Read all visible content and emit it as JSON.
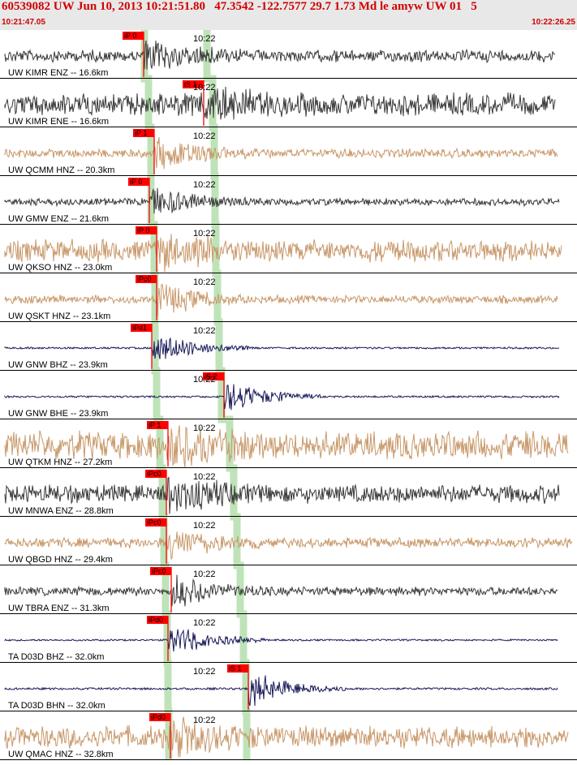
{
  "header": {
    "title": "60539082 UW Jun 10, 2013 10:21:51.80   47.3542 -122.7577 29.7 1.73 Md le amyw UW 01   5",
    "start_time": "10:21:47.05",
    "end_time": "10:22:26.25"
  },
  "time_tick_label": "10:22",
  "colors": {
    "header_bg": "#e8e8e8",
    "title_red": "#d00000",
    "pick_red": "#ff0000",
    "trace_gray": "#3a3a3a",
    "trace_tan": "#c8986a",
    "trace_navy": "#1a1a5a",
    "band_green": "#b8e0b0"
  },
  "traces": [
    {
      "label": "UW KIMR ENZ -- 16.6km",
      "pick": "iP 0",
      "color": "gray",
      "amp": 0.3,
      "pick_frac": 0.249,
      "end_frac": 0.962
    },
    {
      "label": "UW KIMR ENE -- 16.6km",
      "pick": "iS 1",
      "color": "gray",
      "amp": 0.55,
      "pick_frac": 0.353,
      "end_frac": 0.962
    },
    {
      "label": "UW QCMM HNZ -- 20.3km",
      "pick": "iP 1",
      "color": "tan",
      "amp": 0.22,
      "pick_frac": 0.267,
      "end_frac": 0.966
    },
    {
      "label": "UW GMW ENZ -- 21.6km",
      "pick": "iP 0",
      "color": "gray",
      "amp": 0.18,
      "pick_frac": 0.259,
      "end_frac": 0.969
    },
    {
      "label": "UW QKSO HNZ -- 23.0km",
      "pick": "iP 0",
      "color": "tan",
      "amp": 0.55,
      "pick_frac": 0.271,
      "end_frac": 0.973
    },
    {
      "label": "UW QSKT HNZ -- 23.1km",
      "pick": "iPc0",
      "color": "tan",
      "amp": 0.2,
      "pick_frac": 0.272,
      "end_frac": 0.966
    },
    {
      "label": "UW GNW BHZ -- 23.9km",
      "pick": "iPd1",
      "color": "navy",
      "amp": 0.5,
      "pick_frac": 0.263,
      "end_frac": 0.969
    },
    {
      "label": "UW GNW BHE -- 23.9km",
      "pick": "iS 2",
      "color": "navy",
      "amp": 0.5,
      "pick_frac": 0.388,
      "end_frac": 0.969
    },
    {
      "label": "UW QTKM HNZ -- 27.2km",
      "pick": "iP 1",
      "color": "tan",
      "amp": 0.7,
      "pick_frac": 0.291,
      "end_frac": 0.984
    },
    {
      "label": "UW MNWA ENZ -- 28.8km",
      "pick": "iPc0",
      "color": "gray",
      "amp": 0.45,
      "pick_frac": 0.288,
      "end_frac": 0.969
    },
    {
      "label": "UW QBGD HNZ -- 29.4km",
      "pick": "iPc0",
      "color": "tan",
      "amp": 0.25,
      "pick_frac": 0.289,
      "end_frac": 0.991
    },
    {
      "label": "UW TBRA ENZ -- 31.3km",
      "pick": "iPc0",
      "color": "gray",
      "amp": 0.22,
      "pick_frac": 0.297,
      "end_frac": 0.966
    },
    {
      "label": "TA D03D BHZ -- 32.0km",
      "pick": "iPd0",
      "color": "navy",
      "amp": 0.45,
      "pick_frac": 0.291,
      "end_frac": 0.966
    },
    {
      "label": "TA D03D BHN -- 32.0km",
      "pick": "iS 1",
      "color": "navy",
      "amp": 0.55,
      "pick_frac": 0.43,
      "end_frac": 0.966
    },
    {
      "label": "UW QMAC HNZ -- 32.8km",
      "pick": "iPd0",
      "color": "tan",
      "amp": 0.55,
      "pick_frac": 0.295,
      "end_frac": 0.985
    }
  ]
}
